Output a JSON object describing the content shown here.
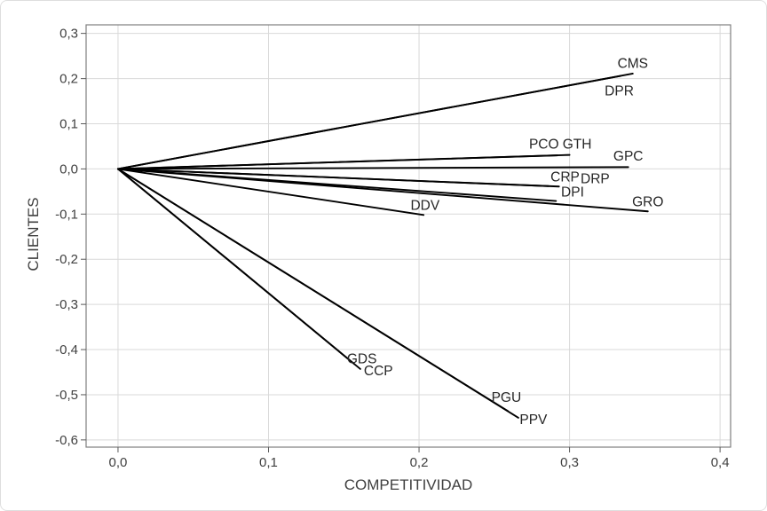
{
  "chart_data": {
    "type": "line",
    "subtype": "biplot-vector-plot",
    "title": "",
    "xlabel": "COMPETITIVIDAD",
    "ylabel": "CLIENTES",
    "xlim": [
      -0.0212,
      0.407
    ],
    "ylim": [
      -0.616,
      0.319
    ],
    "grid": true,
    "legend": "none",
    "origin": [
      0.0,
      0.0
    ],
    "x_ticks": {
      "values": [
        0.0,
        0.1,
        0.2,
        0.3,
        0.4
      ],
      "labels": [
        "0,0",
        "0,1",
        "0,2",
        "0,3",
        "0,4"
      ]
    },
    "y_ticks": {
      "values": [
        0.3,
        0.2,
        0.1,
        0.0,
        -0.1,
        -0.2,
        -0.3,
        -0.4,
        -0.5,
        -0.6
      ],
      "labels": [
        "0,3",
        "0,2",
        "0,1",
        "0,0",
        "-0,1",
        "-0,2",
        "-0,3",
        "-0,4",
        "-0,5",
        "-0,6"
      ]
    },
    "vectors": [
      {
        "name": "CMS",
        "x": 0.342,
        "y": 0.211,
        "label_x": 0.342,
        "label_y": 0.234
      },
      {
        "name": "DPR",
        "x": 0.334,
        "y": 0.206,
        "label_x": 0.333,
        "label_y": 0.173
      },
      {
        "name": "PCO",
        "x": 0.292,
        "y": 0.03,
        "label_x": 0.283,
        "label_y": 0.055
      },
      {
        "name": "GTH",
        "x": 0.3,
        "y": 0.031,
        "label_x": 0.305,
        "label_y": 0.055
      },
      {
        "name": "GPC",
        "x": 0.339,
        "y": 0.004,
        "label_x": 0.339,
        "label_y": 0.028
      },
      {
        "name": "CRP",
        "x": 0.286,
        "y": -0.038,
        "label_x": 0.297,
        "label_y": -0.018
      },
      {
        "name": "DRP",
        "x": 0.293,
        "y": -0.039,
        "label_x": 0.317,
        "label_y": -0.022
      },
      {
        "name": "DPI",
        "x": 0.291,
        "y": -0.071,
        "label_x": 0.302,
        "label_y": -0.051
      },
      {
        "name": "GRO",
        "x": 0.352,
        "y": -0.094,
        "label_x": 0.352,
        "label_y": -0.073
      },
      {
        "name": "DDV",
        "x": 0.203,
        "y": -0.102,
        "label_x": 0.204,
        "label_y": -0.081
      },
      {
        "name": "GDS",
        "x": 0.157,
        "y": -0.432,
        "label_x": 0.162,
        "label_y": -0.421
      },
      {
        "name": "CCP",
        "x": 0.161,
        "y": -0.443,
        "label_x": 0.173,
        "label_y": -0.447
      },
      {
        "name": "PGU",
        "x": 0.259,
        "y": -0.536,
        "label_x": 0.258,
        "label_y": -0.506
      },
      {
        "name": "PPV",
        "x": 0.266,
        "y": -0.551,
        "label_x": 0.276,
        "label_y": -0.555
      }
    ],
    "colors": {
      "vector_line": "#000000",
      "gridline": "#d9d9d9",
      "plot_border": "#7f7f7f",
      "tick_mark": "#595959",
      "axis_text": "#404040",
      "vector_label_text": "#262626",
      "background": "#ffffff"
    }
  }
}
